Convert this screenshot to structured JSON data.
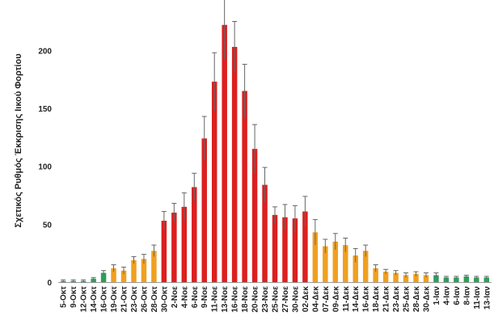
{
  "chart_data": {
    "type": "bar",
    "ylabel": "Σχετικός Ρυθμός Έκκρισης Ιικού Φορτίου",
    "ylim": [
      0,
      240
    ],
    "yticks": [
      0,
      50,
      100,
      150,
      200
    ],
    "grid": false,
    "legend": "none",
    "colors": {
      "green": "#2e9e5b",
      "orange": "#f0a020",
      "red": "#dd1f1f",
      "error": "#666666"
    },
    "categories": [
      "5-Οκτ",
      "9-Οκτ",
      "12-Οκτ",
      "14-Οκτ",
      "16-Οκτ",
      "19-Οκτ",
      "21-Οκτ",
      "23-Οκτ",
      "26-Οκτ",
      "28-Οκτ",
      "30-Οκτ",
      "2-Νοε",
      "4-Νοε",
      "6-Νοε",
      "9-Νοε",
      "11-Νοε",
      "13-Νοε",
      "16-Νοε",
      "18-Νοε",
      "20-Νοε",
      "23-Νοε",
      "25-Νοε",
      "27-Νοε",
      "30-Νοε",
      "02-Δεκ",
      "04-Δεκ",
      "07-Δεκ",
      "09-Δεκ",
      "11-Δεκ",
      "14-Δεκ",
      "16-Δεκ",
      "18-Δεκ",
      "21-Δεκ",
      "23-Δεκ",
      "25-Δεκ",
      "28-Δεκ",
      "30-Δεκ",
      "1-Ιαν",
      "4-Ιαν",
      "6-Ιαν",
      "8-Ιαν",
      "11-Ιαν",
      "13-Ιαν"
    ],
    "values": [
      1,
      1,
      1,
      3,
      8,
      12,
      10,
      19,
      20,
      27,
      53,
      60,
      65,
      82,
      124,
      173,
      222,
      203,
      165,
      115,
      84,
      58,
      56,
      55,
      61,
      43,
      31,
      35,
      32,
      23,
      27,
      12,
      9,
      8,
      6,
      7,
      6,
      6,
      4,
      4,
      5,
      4,
      4
    ],
    "errors": [
      1,
      1,
      1,
      1,
      2,
      3,
      3,
      3,
      4,
      5,
      8,
      8,
      12,
      12,
      19,
      25,
      30,
      22,
      23,
      21,
      15,
      7,
      11,
      11,
      13,
      11,
      6,
      7,
      6,
      6,
      5,
      3,
      2,
      2,
      2,
      2,
      2,
      2,
      1,
      1,
      1,
      1,
      1
    ],
    "bar_colors": [
      "green",
      "green",
      "green",
      "green",
      "green",
      "orange",
      "orange",
      "orange",
      "orange",
      "orange",
      "red",
      "red",
      "red",
      "red",
      "red",
      "red",
      "red",
      "red",
      "red",
      "red",
      "red",
      "red",
      "red",
      "red",
      "red",
      "orange",
      "orange",
      "orange",
      "orange",
      "orange",
      "orange",
      "orange",
      "orange",
      "orange",
      "orange",
      "orange",
      "orange",
      "green",
      "green",
      "green",
      "green",
      "green",
      "green"
    ]
  }
}
